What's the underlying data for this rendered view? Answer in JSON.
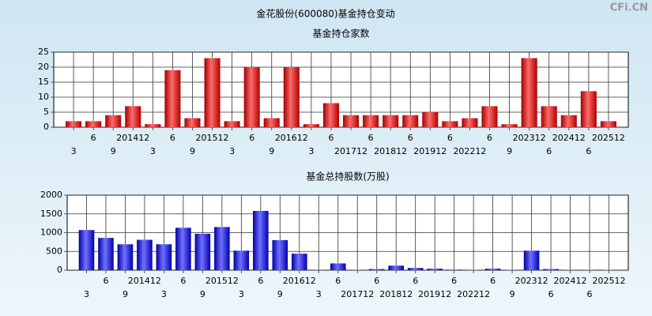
{
  "title": "金花股份(600080)基金持仓变动",
  "watermark": "CFi.CN",
  "chart_data": [
    {
      "type": "bar",
      "title": "基金持仓家数",
      "color": "#e8242a",
      "grid": true,
      "categories": [
        "3",
        "6",
        "9",
        "201412",
        "3",
        "6",
        "9",
        "201512",
        "3",
        "6",
        "9",
        "201612",
        "3",
        "6",
        "201712",
        "6",
        "201812",
        "6",
        "201912",
        "6",
        "202212",
        "6",
        "9",
        "202312",
        "6",
        "202412",
        "6",
        "202512"
      ],
      "values": [
        2,
        2,
        4,
        7,
        1,
        19,
        3,
        23,
        2,
        20,
        3,
        20,
        1,
        8,
        4,
        4,
        4,
        4,
        5,
        2,
        3,
        7,
        1,
        23,
        7,
        4,
        12,
        2
      ],
      "ylim": [
        0,
        25
      ],
      "yticks": [
        0,
        5,
        10,
        15,
        20,
        25
      ]
    },
    {
      "type": "bar",
      "title": "基金总持股数(万股)",
      "color": "#2a2ad8",
      "grid": true,
      "categories": [
        "3",
        "6",
        "9",
        "201412",
        "3",
        "6",
        "9",
        "201512",
        "3",
        "6",
        "9",
        "201612",
        "3",
        "6",
        "201712",
        "6",
        "201812",
        "6",
        "201912",
        "6",
        "202212",
        "6",
        "9",
        "202312",
        "6",
        "202412",
        "6",
        "202512"
      ],
      "values": [
        1070,
        860,
        690,
        810,
        690,
        1130,
        970,
        1150,
        520,
        1580,
        800,
        440,
        5,
        180,
        10,
        30,
        120,
        60,
        40,
        15,
        10,
        40,
        10,
        520,
        30,
        10,
        10,
        10
      ],
      "ylim": [
        0,
        2000
      ],
      "yticks": [
        0,
        500,
        1000,
        1500,
        2000
      ]
    }
  ]
}
